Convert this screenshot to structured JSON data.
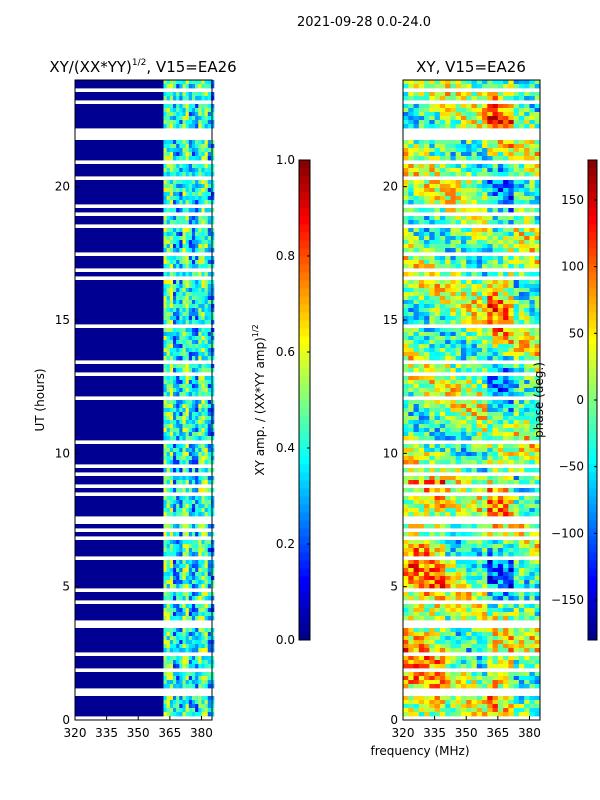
{
  "suptitle": "2021-09-28 0.0-24.0",
  "colors": {
    "jet": [
      "#00007f",
      "#0000ff",
      "#007fff",
      "#00ffff",
      "#7fff7f",
      "#ffff00",
      "#ff7f00",
      "#ff0000",
      "#7f0000"
    ],
    "gap": "#ffffff"
  },
  "chart_data": [
    {
      "type": "heatmap",
      "title": "XY/(XX*YY)",
      "title_sup": "1/2",
      "title_suffix": ", V15=EA26",
      "xlabel": "",
      "ylabel": "UT (hours)",
      "xlim": [
        320,
        385
      ],
      "ylim": [
        0,
        24
      ],
      "xticks": [
        320,
        335,
        350,
        365,
        380
      ],
      "yticks": [
        0,
        5,
        10,
        15,
        20
      ],
      "colorbar": {
        "label": "XY amp. / (XX*YY amp)",
        "label_sup": "1/2",
        "range": [
          0.0,
          1.0
        ],
        "ticks": [
          "0.0",
          "0.2",
          "0.4",
          "0.6",
          "0.8",
          "1.0"
        ],
        "tick_values": [
          0.0,
          0.2,
          0.4,
          0.6,
          0.8,
          1.0
        ]
      },
      "description_values": {
        "low_band_MHz": [
          320,
          362
        ],
        "low_band_level": 0.02,
        "high_band_MHz": [
          362,
          385
        ],
        "high_band_level_range": [
          0.2,
          0.55
        ]
      }
    },
    {
      "type": "heatmap",
      "title": "XY, V15=EA26",
      "xlabel": "frequency (MHz)",
      "ylabel": "",
      "xlim": [
        320,
        385
      ],
      "ylim": [
        0,
        24
      ],
      "xticks": [
        320,
        335,
        350,
        365,
        380
      ],
      "yticks": [
        0,
        5,
        10,
        15,
        20
      ],
      "colorbar": {
        "label": "phase (deg.)",
        "range": [
          -180,
          180
        ],
        "ticks": [
          "−150",
          "−100",
          "−50",
          "0",
          "50",
          "100",
          "150"
        ],
        "tick_values": [
          -150,
          -100,
          -50,
          0,
          50,
          100,
          150
        ]
      }
    }
  ],
  "gap_rows_ut": [
    0.05,
    0.95,
    1.0,
    1.1,
    1.9,
    2.5,
    2.7,
    3.0,
    3.5,
    3.7,
    3.9,
    4.4,
    4.8,
    4.85,
    5.7,
    6.1,
    6.3,
    6.6,
    6.8,
    7.1,
    7.4,
    7.6,
    7.8,
    8.1,
    8.5,
    8.8,
    9.2,
    9.25,
    9.5,
    9.9,
    10.4,
    10.8,
    11.4,
    12.1,
    12.6,
    13.0,
    13.4,
    13.45,
    13.5,
    14.1,
    14.4,
    14.8,
    15.3,
    15.6,
    15.9,
    16.2,
    16.6,
    16.9,
    17.1,
    17.5,
    18.5,
    19.0,
    19.3,
    19.8,
    20.3,
    20.9,
    21.3,
    21.6,
    21.8,
    21.95,
    22.1,
    22.5,
    22.8,
    23.2,
    23.4,
    23.6
  ]
}
